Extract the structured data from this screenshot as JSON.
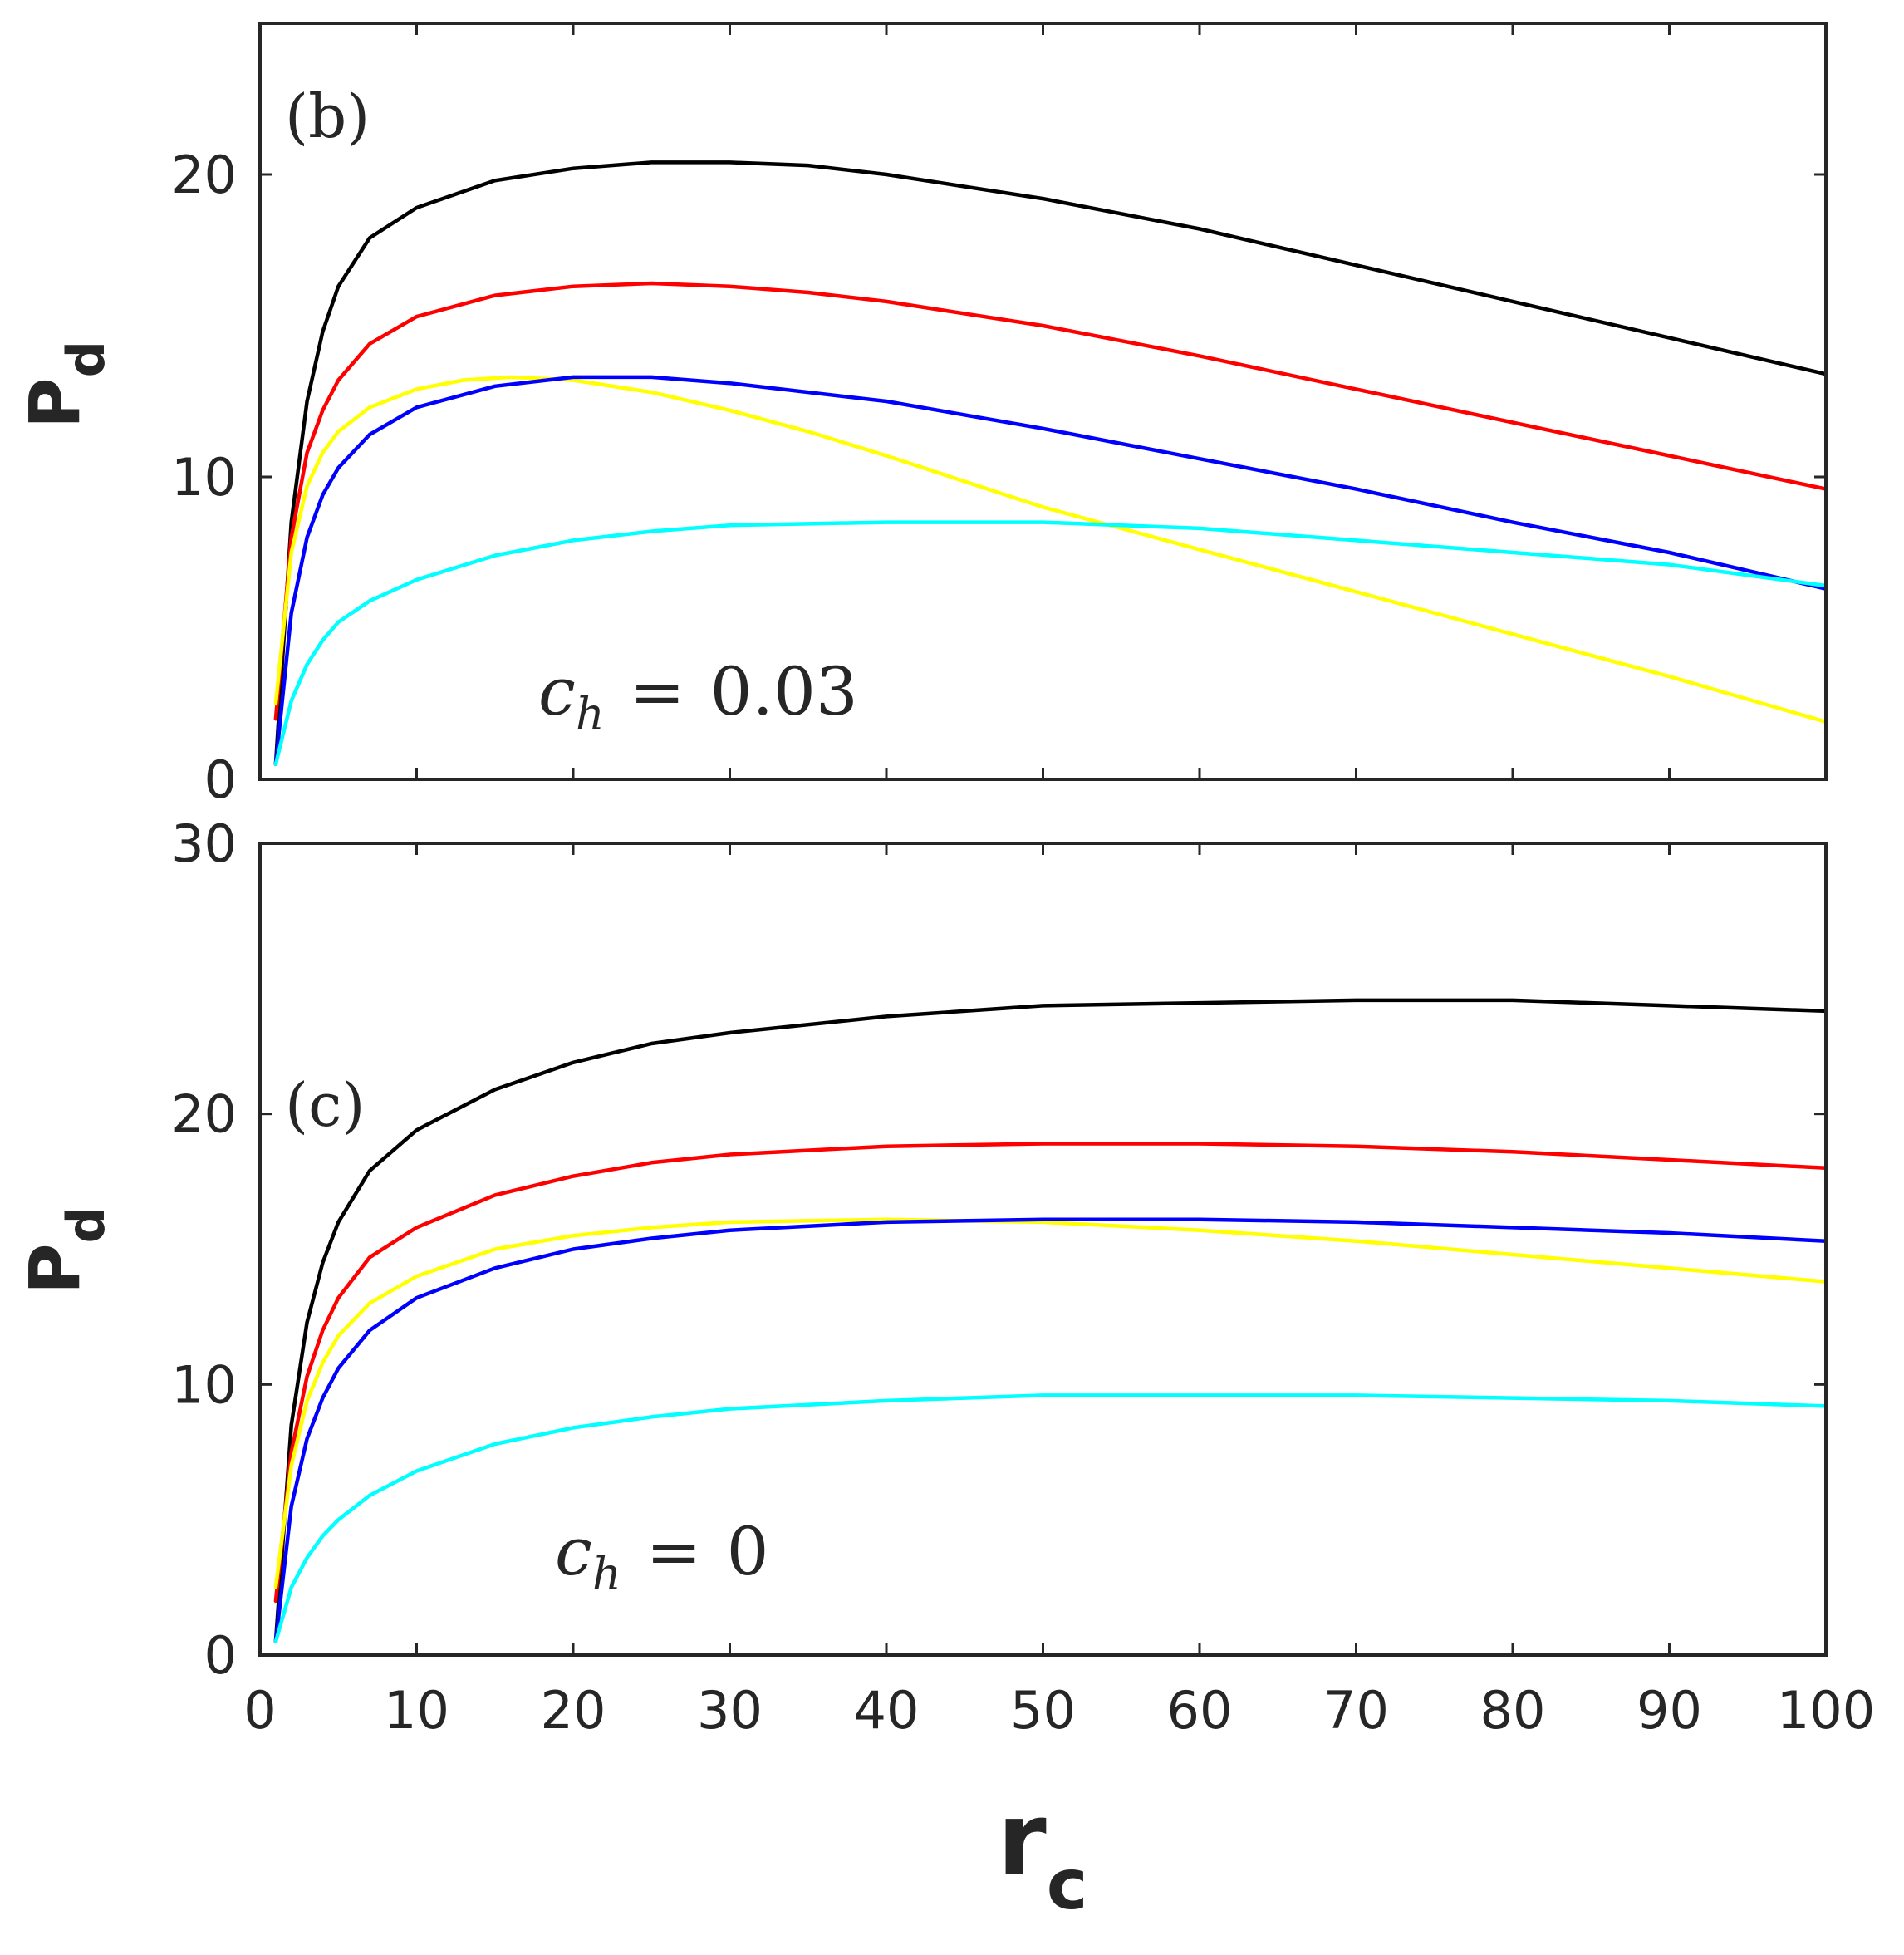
{
  "chart_data": [
    {
      "type": "line",
      "panel_label": "(b)",
      "annotation": {
        "symbol": "c",
        "subscript": "h",
        "equals": "=",
        "value": "0.03"
      },
      "xlabel": {
        "main": "r",
        "sub": "c"
      },
      "ylabel": {
        "main": "P",
        "sub": "d"
      },
      "xlim": [
        0,
        100
      ],
      "ylim": [
        0,
        25
      ],
      "xticks": [
        0,
        10,
        20,
        30,
        40,
        50,
        60,
        70,
        80,
        90,
        100
      ],
      "yticks": [
        0,
        10,
        20
      ],
      "ytick_labels": [
        "0",
        "10",
        "20"
      ],
      "grid": false,
      "series": [
        {
          "name": "black",
          "color": "#000000",
          "x": [
            1,
            2,
            3,
            4,
            5,
            7,
            10,
            15,
            20,
            25,
            30,
            35,
            40,
            50,
            60,
            70,
            80,
            90,
            100
          ],
          "y": [
            0.5,
            8.5,
            12.5,
            14.8,
            16.3,
            17.9,
            18.9,
            19.8,
            20.2,
            20.4,
            20.4,
            20.3,
            20.0,
            19.2,
            18.2,
            17.0,
            15.8,
            14.6,
            13.4
          ]
        },
        {
          "name": "red",
          "color": "#ff0000",
          "x": [
            1,
            2,
            3,
            4,
            5,
            7,
            10,
            15,
            20,
            25,
            30,
            35,
            40,
            50,
            60,
            70,
            80,
            90,
            100
          ],
          "y": [
            2.0,
            8.0,
            10.8,
            12.2,
            13.2,
            14.4,
            15.3,
            16.0,
            16.3,
            16.4,
            16.3,
            16.1,
            15.8,
            15.0,
            14.0,
            12.9,
            11.8,
            10.7,
            9.6
          ]
        },
        {
          "name": "yellow",
          "color": "#ffff00",
          "x": [
            1,
            2,
            3,
            4,
            5,
            7,
            10,
            13,
            16,
            20,
            25,
            30,
            35,
            40,
            50,
            60,
            70,
            80,
            90,
            100
          ],
          "y": [
            2.5,
            7.5,
            9.7,
            10.8,
            11.5,
            12.3,
            12.9,
            13.2,
            13.3,
            13.2,
            12.8,
            12.2,
            11.5,
            10.7,
            9.0,
            7.6,
            6.2,
            4.8,
            3.4,
            1.9
          ]
        },
        {
          "name": "blue",
          "color": "#0000ff",
          "x": [
            1,
            2,
            3,
            4,
            5,
            7,
            10,
            15,
            20,
            25,
            30,
            40,
            50,
            60,
            70,
            80,
            90,
            100
          ],
          "y": [
            0.5,
            5.5,
            8.0,
            9.4,
            10.3,
            11.4,
            12.3,
            13.0,
            13.3,
            13.3,
            13.1,
            12.5,
            11.6,
            10.6,
            9.6,
            8.5,
            7.5,
            6.3
          ]
        },
        {
          "name": "cyan",
          "color": "#00ffff",
          "x": [
            1,
            2,
            3,
            4,
            5,
            7,
            10,
            15,
            20,
            25,
            30,
            40,
            50,
            60,
            70,
            80,
            90,
            100
          ],
          "y": [
            0.5,
            2.6,
            3.8,
            4.6,
            5.2,
            5.9,
            6.6,
            7.4,
            7.9,
            8.2,
            8.4,
            8.5,
            8.5,
            8.3,
            7.9,
            7.5,
            7.1,
            6.4
          ]
        }
      ]
    },
    {
      "type": "line",
      "panel_label": "(c)",
      "annotation": {
        "symbol": "c",
        "subscript": "h",
        "equals": "=",
        "value": "0"
      },
      "xlabel": {
        "main": "r",
        "sub": "c"
      },
      "ylabel": {
        "main": "P",
        "sub": "d"
      },
      "xlim": [
        0,
        100
      ],
      "ylim": [
        0,
        30
      ],
      "xticks": [
        0,
        10,
        20,
        30,
        40,
        50,
        60,
        70,
        80,
        90,
        100
      ],
      "xtick_labels": [
        "0",
        "10",
        "20",
        "30",
        "40",
        "50",
        "60",
        "70",
        "80",
        "90",
        "100"
      ],
      "yticks": [
        0,
        10,
        20,
        30
      ],
      "ytick_labels": [
        "0",
        "10",
        "20",
        "30"
      ],
      "grid": false,
      "series": [
        {
          "name": "black",
          "color": "#000000",
          "x": [
            1,
            2,
            3,
            4,
            5,
            7,
            10,
            15,
            20,
            25,
            30,
            40,
            50,
            60,
            70,
            80,
            90,
            100
          ],
          "y": [
            0.5,
            8.5,
            12.3,
            14.5,
            16.0,
            17.9,
            19.4,
            20.9,
            21.9,
            22.6,
            23.0,
            23.6,
            24.0,
            24.1,
            24.2,
            24.2,
            24.0,
            23.8
          ]
        },
        {
          "name": "red",
          "color": "#ff0000",
          "x": [
            1,
            2,
            3,
            4,
            5,
            7,
            10,
            15,
            20,
            25,
            30,
            40,
            50,
            60,
            70,
            80,
            90,
            100
          ],
          "y": [
            2.0,
            7.5,
            10.3,
            12.0,
            13.2,
            14.7,
            15.8,
            17.0,
            17.7,
            18.2,
            18.5,
            18.8,
            18.9,
            18.9,
            18.8,
            18.6,
            18.3,
            18.0
          ]
        },
        {
          "name": "yellow",
          "color": "#ffff00",
          "x": [
            1,
            2,
            3,
            4,
            5,
            7,
            10,
            15,
            20,
            25,
            30,
            40,
            50,
            60,
            70,
            80,
            90,
            100
          ],
          "y": [
            2.5,
            7.0,
            9.4,
            10.8,
            11.8,
            13.0,
            14.0,
            15.0,
            15.5,
            15.8,
            16.0,
            16.1,
            16.0,
            15.7,
            15.3,
            14.8,
            14.3,
            13.8
          ]
        },
        {
          "name": "blue",
          "color": "#0000ff",
          "x": [
            1,
            2,
            3,
            4,
            5,
            7,
            10,
            15,
            20,
            25,
            30,
            40,
            50,
            60,
            70,
            80,
            90,
            100
          ],
          "y": [
            0.5,
            5.5,
            8.0,
            9.5,
            10.6,
            12.0,
            13.2,
            14.3,
            15.0,
            15.4,
            15.7,
            16.0,
            16.1,
            16.1,
            16.0,
            15.8,
            15.6,
            15.3
          ]
        },
        {
          "name": "cyan",
          "color": "#00ffff",
          "x": [
            1,
            2,
            3,
            4,
            5,
            7,
            10,
            15,
            20,
            25,
            30,
            40,
            50,
            60,
            70,
            80,
            90,
            100
          ],
          "y": [
            0.5,
            2.5,
            3.6,
            4.4,
            5.0,
            5.9,
            6.8,
            7.8,
            8.4,
            8.8,
            9.1,
            9.4,
            9.6,
            9.6,
            9.6,
            9.5,
            9.4,
            9.2
          ]
        }
      ]
    }
  ]
}
